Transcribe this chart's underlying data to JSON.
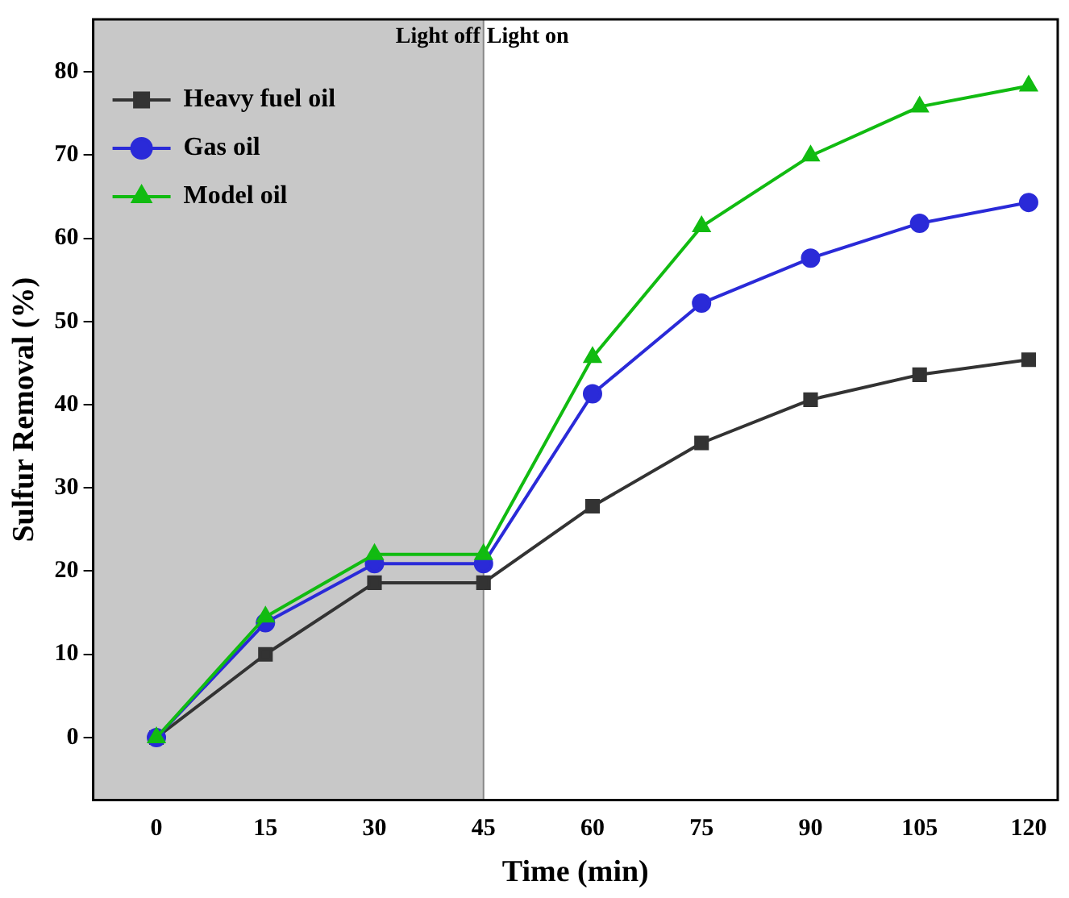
{
  "chart_data": {
    "type": "line",
    "xlabel": "Time (min)",
    "ylabel": "Sulfur Removal (%)",
    "x": [
      0,
      15,
      30,
      45,
      60,
      75,
      90,
      105,
      120
    ],
    "series": [
      {
        "name": "Heavy fuel oil",
        "color": "#333333",
        "marker": "square",
        "values": [
          0,
          10,
          18.6,
          18.6,
          27.8,
          35.4,
          40.6,
          43.6,
          45.4
        ]
      },
      {
        "name": "Gas oil",
        "color": "#2a2ad8",
        "marker": "circle",
        "values": [
          0,
          13.8,
          20.9,
          20.9,
          41.3,
          52.2,
          57.6,
          61.8,
          64.3
        ]
      },
      {
        "name": "Model oil",
        "color": "#11bb11",
        "marker": "triangle",
        "values": [
          0,
          14.5,
          22,
          22,
          45.7,
          61.4,
          69.9,
          75.8,
          78.3
        ]
      }
    ],
    "xlim": [
      -8.7,
      124
    ],
    "xticks": [
      0,
      15,
      30,
      45,
      60,
      75,
      90,
      105,
      120
    ],
    "ylim": [
      -7.5,
      86.3
    ],
    "yticks": [
      0,
      10,
      20,
      30,
      40,
      50,
      60,
      70,
      80
    ],
    "bands": [
      {
        "axis": "x",
        "from": -8.7,
        "to": 45,
        "label": "Light off",
        "color": "#c8c8c8"
      }
    ],
    "ref_lines": [
      {
        "axis": "x",
        "value": 45,
        "label": "Light on",
        "color": "#888888"
      }
    ],
    "grid": false,
    "legend": "top left"
  }
}
